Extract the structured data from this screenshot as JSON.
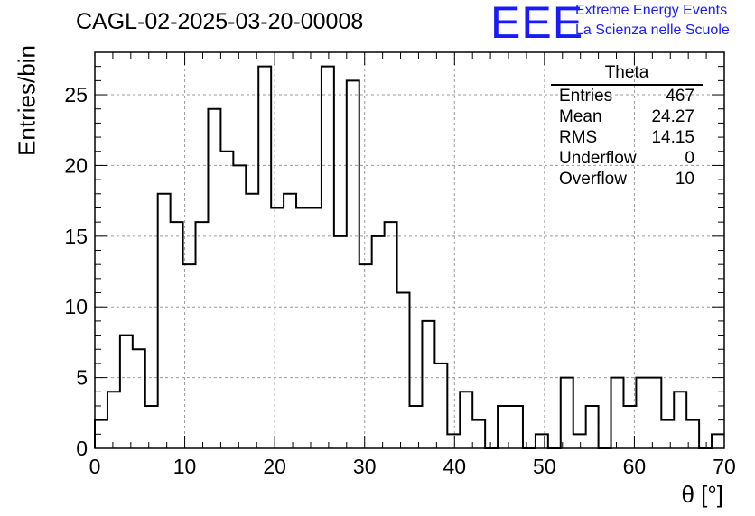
{
  "title": "CAGL-02-2025-03-20-00008",
  "logo": {
    "mark": "EEE",
    "line1": "Extreme Energy Events",
    "line2": "La Scienza nelle Scuole",
    "color": "#1a1aff"
  },
  "stats_box": {
    "title": "Theta",
    "rows": [
      {
        "label": "Entries",
        "value": "467"
      },
      {
        "label": "Mean",
        "value": "24.27"
      },
      {
        "label": "RMS",
        "value": "14.15"
      },
      {
        "label": "Underflow",
        "value": "0"
      },
      {
        "label": "Overflow",
        "value": "10"
      }
    ]
  },
  "chart_data": {
    "type": "bar",
    "style": "step-histogram",
    "title": "CAGL-02-2025-03-20-00008",
    "xlabel": "θ [°]",
    "ylabel": "Entries/bin",
    "xlim": [
      0,
      70
    ],
    "ylim": [
      0,
      28
    ],
    "grid": true,
    "bin_width": 1.4,
    "bin_edges_start": 0,
    "values": [
      2,
      4,
      8,
      7,
      3,
      18,
      16,
      13,
      16,
      24,
      21,
      20,
      18,
      27,
      17,
      18,
      17,
      17,
      27,
      15,
      26,
      13,
      15,
      16,
      11,
      3,
      9,
      6,
      1,
      4,
      2,
      0,
      3,
      3,
      0,
      1,
      0,
      5,
      1,
      3,
      0,
      5,
      3,
      5,
      5,
      2,
      4,
      2,
      0,
      1
    ],
    "x_ticks": [
      "0",
      "10",
      "20",
      "30",
      "40",
      "50",
      "60",
      "70"
    ],
    "y_ticks": [
      "0",
      "5",
      "10",
      "15",
      "20",
      "25"
    ],
    "line_color": "#000000",
    "grid_color": "#9a9a9a"
  }
}
